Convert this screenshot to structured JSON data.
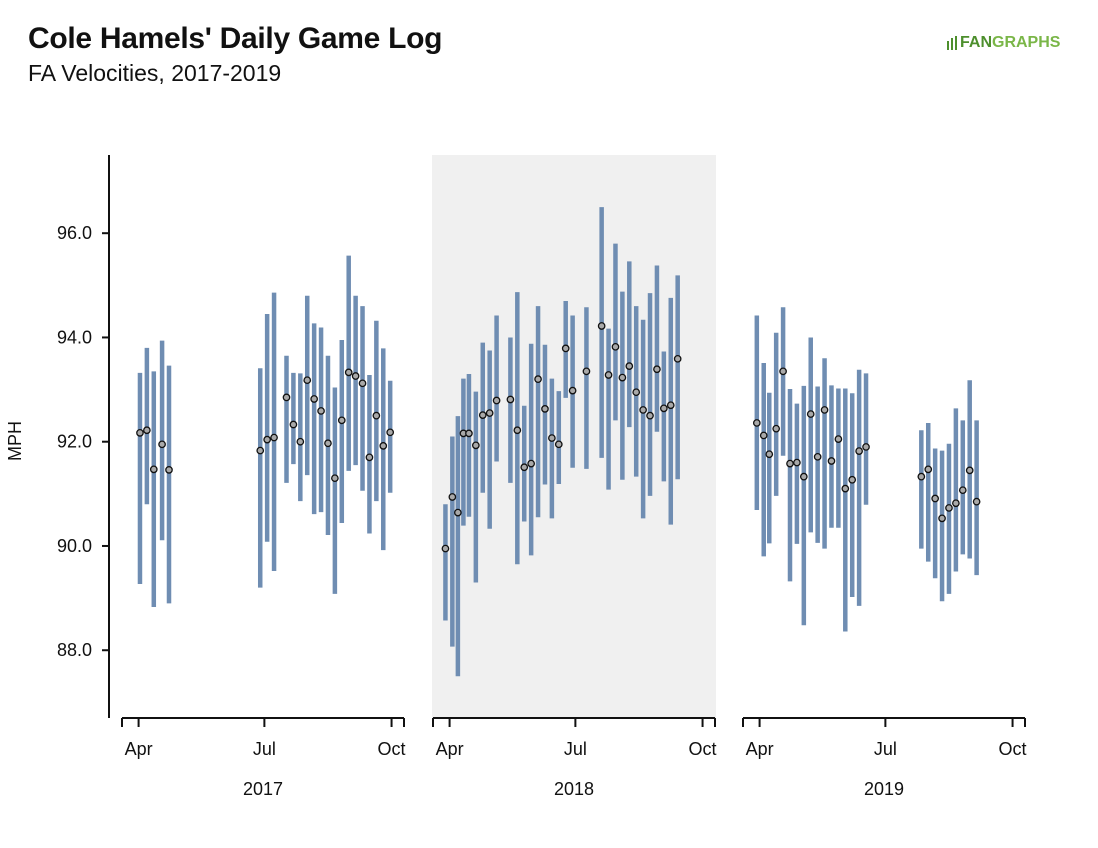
{
  "header": {
    "title": "Cole Hamels' Daily Game Log",
    "subtitle": "FA Velocities, 2017-2019",
    "logo_text_a": "FAN",
    "logo_text_b": "GRAPHS"
  },
  "colors": {
    "bar": "#6f8db2",
    "dot_fill": "#a9a9a9",
    "dot_stroke": "#111111",
    "highlight_panel": "#f0f0f0"
  },
  "chart_data": {
    "type": "scatter",
    "title": "Cole Hamels' Daily Game Log",
    "subtitle": "FA Velocities, 2017-2019",
    "ylabel": "MPH",
    "ylim": [
      86.7,
      97.5
    ],
    "yticks": [
      "88.0",
      "90.0",
      "92.0",
      "94.0",
      "96.0"
    ],
    "ytick_values": [
      88,
      90,
      92,
      94,
      96
    ],
    "grid": false,
    "marks": "dot = average fastball velocity per game; vertical bar = velocity range",
    "panels": [
      {
        "year": "2017",
        "highlight": false,
        "x_ticks": [
          "Apr",
          "Jul",
          "Oct"
        ],
        "x_tick_dates": [
          "2017-04-01",
          "2017-07-01",
          "2017-10-01"
        ],
        "xlim": [
          "2017-03-20",
          "2017-10-10"
        ],
        "games": [
          {
            "date": "2017-04-02",
            "avg": 92.17,
            "low": 89.27,
            "high": 93.32
          },
          {
            "date": "2017-04-07",
            "avg": 92.22,
            "low": 90.8,
            "high": 93.8
          },
          {
            "date": "2017-04-12",
            "avg": 91.47,
            "low": 88.83,
            "high": 93.35
          },
          {
            "date": "2017-04-18",
            "avg": 91.95,
            "low": 90.11,
            "high": 93.94
          },
          {
            "date": "2017-04-23",
            "avg": 91.46,
            "low": 88.9,
            "high": 93.46
          },
          {
            "date": "2017-06-28",
            "avg": 91.83,
            "low": 89.2,
            "high": 93.41
          },
          {
            "date": "2017-07-03",
            "avg": 92.04,
            "low": 90.08,
            "high": 94.45
          },
          {
            "date": "2017-07-08",
            "avg": 92.08,
            "low": 89.52,
            "high": 94.86
          },
          {
            "date": "2017-07-17",
            "avg": 92.85,
            "low": 91.21,
            "high": 93.65
          },
          {
            "date": "2017-07-22",
            "avg": 92.33,
            "low": 91.57,
            "high": 93.32
          },
          {
            "date": "2017-07-27",
            "avg": 92.0,
            "low": 90.86,
            "high": 93.31
          },
          {
            "date": "2017-08-01",
            "avg": 93.18,
            "low": 91.36,
            "high": 94.8
          },
          {
            "date": "2017-08-06",
            "avg": 92.82,
            "low": 90.61,
            "high": 94.27
          },
          {
            "date": "2017-08-11",
            "avg": 92.59,
            "low": 90.65,
            "high": 94.19
          },
          {
            "date": "2017-08-16",
            "avg": 91.97,
            "low": 90.21,
            "high": 93.65
          },
          {
            "date": "2017-08-21",
            "avg": 91.3,
            "low": 89.08,
            "high": 93.04
          },
          {
            "date": "2017-08-26",
            "avg": 92.41,
            "low": 90.44,
            "high": 93.95
          },
          {
            "date": "2017-08-31",
            "avg": 93.33,
            "low": 91.44,
            "high": 95.57
          },
          {
            "date": "2017-09-05",
            "avg": 93.26,
            "low": 91.55,
            "high": 94.8
          },
          {
            "date": "2017-09-10",
            "avg": 93.12,
            "low": 91.06,
            "high": 94.6
          },
          {
            "date": "2017-09-15",
            "avg": 91.7,
            "low": 90.24,
            "high": 93.28
          },
          {
            "date": "2017-09-20",
            "avg": 92.5,
            "low": 90.86,
            "high": 94.32
          },
          {
            "date": "2017-09-25",
            "avg": 91.92,
            "low": 89.92,
            "high": 93.79
          },
          {
            "date": "2017-09-30",
            "avg": 92.18,
            "low": 91.02,
            "high": 93.17
          }
        ]
      },
      {
        "year": "2018",
        "highlight": true,
        "x_ticks": [
          "Apr",
          "Jul",
          "Oct"
        ],
        "x_tick_dates": [
          "2018-04-01",
          "2018-07-01",
          "2018-10-01"
        ],
        "xlim": [
          "2018-03-20",
          "2018-10-10"
        ],
        "games": [
          {
            "date": "2018-03-29",
            "avg": 89.95,
            "low": 88.57,
            "high": 90.8
          },
          {
            "date": "2018-04-03",
            "avg": 90.94,
            "low": 88.07,
            "high": 92.1
          },
          {
            "date": "2018-04-07",
            "avg": 90.64,
            "low": 87.5,
            "high": 92.49
          },
          {
            "date": "2018-04-11",
            "avg": 92.16,
            "low": 90.39,
            "high": 93.21
          },
          {
            "date": "2018-04-15",
            "avg": 92.16,
            "low": 90.56,
            "high": 93.3
          },
          {
            "date": "2018-04-20",
            "avg": 91.93,
            "low": 89.3,
            "high": 92.96
          },
          {
            "date": "2018-04-25",
            "avg": 92.51,
            "low": 91.02,
            "high": 93.9
          },
          {
            "date": "2018-04-30",
            "avg": 92.55,
            "low": 90.33,
            "high": 93.75
          },
          {
            "date": "2018-05-05",
            "avg": 92.79,
            "low": 91.62,
            "high": 94.42
          },
          {
            "date": "2018-05-15",
            "avg": 92.81,
            "low": 91.21,
            "high": 94.0
          },
          {
            "date": "2018-05-20",
            "avg": 92.22,
            "low": 89.65,
            "high": 94.87
          },
          {
            "date": "2018-05-25",
            "avg": 91.51,
            "low": 90.47,
            "high": 92.69
          },
          {
            "date": "2018-05-30",
            "avg": 91.58,
            "low": 89.82,
            "high": 93.88
          },
          {
            "date": "2018-06-04",
            "avg": 93.2,
            "low": 90.55,
            "high": 94.6
          },
          {
            "date": "2018-06-09",
            "avg": 92.63,
            "low": 91.18,
            "high": 93.86
          },
          {
            "date": "2018-06-14",
            "avg": 92.07,
            "low": 90.53,
            "high": 93.21
          },
          {
            "date": "2018-06-19",
            "avg": 91.95,
            "low": 91.19,
            "high": 92.97
          },
          {
            "date": "2018-06-24",
            "avg": 93.79,
            "low": 92.84,
            "high": 94.7
          },
          {
            "date": "2018-06-29",
            "avg": 92.98,
            "low": 91.5,
            "high": 94.42
          },
          {
            "date": "2018-07-09",
            "avg": 93.35,
            "low": 91.48,
            "high": 94.58
          },
          {
            "date": "2018-07-20",
            "avg": 94.22,
            "low": 91.69,
            "high": 96.5
          },
          {
            "date": "2018-07-25",
            "avg": 93.28,
            "low": 91.08,
            "high": 94.17
          },
          {
            "date": "2018-07-30",
            "avg": 93.82,
            "low": 92.41,
            "high": 95.8
          },
          {
            "date": "2018-08-04",
            "avg": 93.23,
            "low": 91.27,
            "high": 94.88
          },
          {
            "date": "2018-08-09",
            "avg": 93.45,
            "low": 92.28,
            "high": 95.46
          },
          {
            "date": "2018-08-14",
            "avg": 92.95,
            "low": 91.33,
            "high": 94.6
          },
          {
            "date": "2018-08-19",
            "avg": 92.61,
            "low": 90.53,
            "high": 94.34
          },
          {
            "date": "2018-08-24",
            "avg": 92.5,
            "low": 90.96,
            "high": 94.85
          },
          {
            "date": "2018-08-29",
            "avg": 93.39,
            "low": 92.19,
            "high": 95.38
          },
          {
            "date": "2018-09-03",
            "avg": 92.64,
            "low": 91.24,
            "high": 93.73
          },
          {
            "date": "2018-09-08",
            "avg": 92.7,
            "low": 90.41,
            "high": 94.76
          },
          {
            "date": "2018-09-13",
            "avg": 93.59,
            "low": 91.28,
            "high": 95.19
          }
        ]
      },
      {
        "year": "2019",
        "highlight": false,
        "x_ticks": [
          "Apr",
          "Jul",
          "Oct"
        ],
        "x_tick_dates": [
          "2019-04-01",
          "2019-07-01",
          "2019-10-01"
        ],
        "xlim": [
          "2019-03-20",
          "2019-10-10"
        ],
        "games": [
          {
            "date": "2019-03-30",
            "avg": 92.36,
            "low": 90.69,
            "high": 94.42
          },
          {
            "date": "2019-04-04",
            "avg": 92.12,
            "low": 89.8,
            "high": 93.51
          },
          {
            "date": "2019-04-08",
            "avg": 91.76,
            "low": 90.05,
            "high": 92.94
          },
          {
            "date": "2019-04-13",
            "avg": 92.25,
            "low": 90.96,
            "high": 94.09
          },
          {
            "date": "2019-04-18",
            "avg": 93.35,
            "low": 91.73,
            "high": 94.58
          },
          {
            "date": "2019-04-23",
            "avg": 91.58,
            "low": 89.32,
            "high": 93.01
          },
          {
            "date": "2019-04-28",
            "avg": 91.6,
            "low": 90.04,
            "high": 92.73
          },
          {
            "date": "2019-05-03",
            "avg": 91.33,
            "low": 88.48,
            "high": 93.07
          },
          {
            "date": "2019-05-08",
            "avg": 92.53,
            "low": 90.26,
            "high": 94.0
          },
          {
            "date": "2019-05-13",
            "avg": 91.71,
            "low": 90.06,
            "high": 93.06
          },
          {
            "date": "2019-05-18",
            "avg": 92.61,
            "low": 89.95,
            "high": 93.6
          },
          {
            "date": "2019-05-23",
            "avg": 91.63,
            "low": 90.35,
            "high": 93.08
          },
          {
            "date": "2019-05-28",
            "avg": 92.05,
            "low": 90.35,
            "high": 93.02
          },
          {
            "date": "2019-06-02",
            "avg": 91.1,
            "low": 88.36,
            "high": 93.02
          },
          {
            "date": "2019-06-07",
            "avg": 91.27,
            "low": 89.02,
            "high": 92.93
          },
          {
            "date": "2019-06-12",
            "avg": 91.82,
            "low": 88.85,
            "high": 93.38
          },
          {
            "date": "2019-06-17",
            "avg": 91.9,
            "low": 90.79,
            "high": 93.31
          },
          {
            "date": "2019-07-27",
            "avg": 91.33,
            "low": 89.95,
            "high": 92.22
          },
          {
            "date": "2019-08-01",
            "avg": 91.47,
            "low": 89.7,
            "high": 92.36
          },
          {
            "date": "2019-08-06",
            "avg": 90.91,
            "low": 89.38,
            "high": 91.87
          },
          {
            "date": "2019-08-11",
            "avg": 90.53,
            "low": 88.94,
            "high": 91.83
          },
          {
            "date": "2019-08-16",
            "avg": 90.73,
            "low": 89.08,
            "high": 91.96
          },
          {
            "date": "2019-08-21",
            "avg": 90.82,
            "low": 89.51,
            "high": 92.64
          },
          {
            "date": "2019-08-26",
            "avg": 91.07,
            "low": 89.84,
            "high": 92.41
          },
          {
            "date": "2019-08-31",
            "avg": 91.45,
            "low": 89.76,
            "high": 93.18
          },
          {
            "date": "2019-09-05",
            "avg": 90.85,
            "low": 89.44,
            "high": 92.41
          }
        ]
      }
    ]
  }
}
